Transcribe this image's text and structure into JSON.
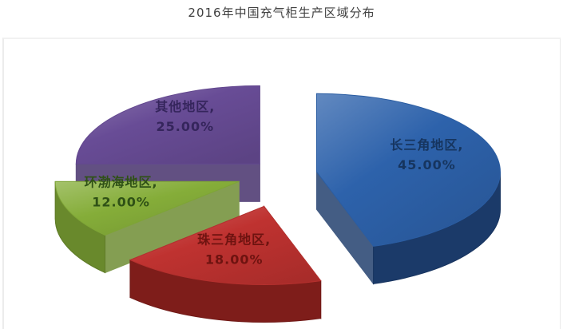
{
  "page": {
    "background": "#ffffff"
  },
  "chart_data": {
    "type": "pie",
    "style": "3d-exploded",
    "title": "2016年中国充气柜生产区域分布",
    "start_angle_deg": 0,
    "direction": "clockwise",
    "legend_position": "none",
    "data_labels": "name-and-percent-on-slice",
    "slices": [
      {
        "label": "长三角地区",
        "value": 45.0,
        "pct_label": "45.00%",
        "lines": [
          "长三角地区,",
          "45.00%"
        ],
        "color_top": "#2d62ab",
        "color_side": "#1b3a69",
        "label_color": "#16355f"
      },
      {
        "label": "珠三角地区",
        "value": 18.0,
        "pct_label": "18.00%",
        "lines": [
          "珠三角地区,",
          "18.00%"
        ],
        "color_top": "#bf3230",
        "color_side": "#7e1d1a",
        "label_color": "#6e1310"
      },
      {
        "label": "环渤海地区",
        "value": 12.0,
        "pct_label": "12.00%",
        "lines": [
          "环渤海地区,",
          "12.00%"
        ],
        "color_top": "#85ad39",
        "color_side": "#69892c",
        "label_color": "#2f5116"
      },
      {
        "label": "其他地区",
        "value": 25.0,
        "pct_label": "25.00%",
        "lines": [
          "其他地区,",
          "25.00%"
        ],
        "color_top": "#684c96",
        "color_side": "#3f2a66",
        "label_color": "#35255c"
      }
    ]
  }
}
